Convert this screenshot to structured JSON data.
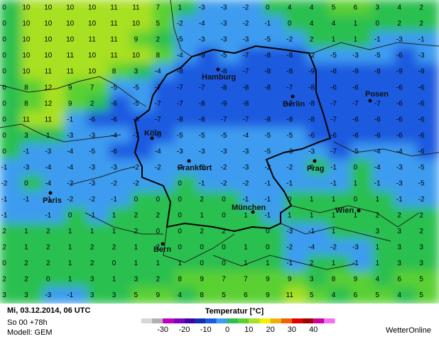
{
  "map": {
    "grid": [
      [
        0,
        10,
        10,
        10,
        10,
        11,
        11,
        7,
        1,
        -3,
        -3,
        -2,
        0,
        4,
        4,
        5,
        6,
        3,
        4,
        2
      ],
      [
        0,
        10,
        10,
        10,
        10,
        11,
        10,
        5,
        -2,
        -4,
        -3,
        -2,
        -1,
        0,
        4,
        4,
        1,
        0,
        2,
        2
      ],
      [
        0,
        10,
        10,
        10,
        11,
        11,
        9,
        2,
        -5,
        -3,
        -3,
        -3,
        -5,
        -2,
        2,
        1,
        1,
        -1,
        -3,
        -1
      ],
      [
        0,
        10,
        10,
        11,
        10,
        11,
        10,
        8,
        -4,
        -9,
        -5,
        -7,
        -8,
        -8,
        -2,
        -5,
        -3,
        -5,
        -6,
        -3
      ],
      [
        0,
        10,
        11,
        11,
        10,
        8,
        3,
        -4,
        -8,
        null,
        -8,
        -7,
        -8,
        -8,
        -9,
        -8,
        -9,
        -8,
        -9,
        -9
      ],
      [
        0,
        8,
        12,
        9,
        7,
        -5,
        -5,
        -7,
        -7,
        -7,
        -8,
        -8,
        -8,
        -7,
        -8,
        -6,
        -6,
        null,
        -6,
        -6
      ],
      [
        0,
        8,
        12,
        9,
        2,
        -6,
        -5,
        -7,
        -7,
        -8,
        -9,
        -8,
        null,
        -7,
        -8,
        -7,
        -7,
        -7,
        -6,
        -6
      ],
      [
        0,
        11,
        11,
        -1,
        -6,
        -6,
        -6,
        -7,
        -8,
        -8,
        -7,
        -7,
        -8,
        -8,
        -8,
        -7,
        -6,
        -6,
        -6,
        -6
      ],
      [
        0,
        3,
        1,
        -3,
        -3,
        -4,
        -7,
        -6,
        -5,
        -5,
        -5,
        -4,
        -5,
        -5,
        -6,
        -6,
        -6,
        -6,
        -6,
        -6
      ],
      [
        0,
        -1,
        -3,
        -4,
        -5,
        -6,
        null,
        -4,
        -3,
        -3,
        -3,
        -3,
        -5,
        -3,
        -3,
        -7,
        -5,
        -4,
        -4,
        -6
      ],
      [
        -1,
        -3,
        -4,
        -4,
        -3,
        -3,
        -2,
        -2,
        -3,
        -2,
        -2,
        -3,
        -2,
        -2,
        0,
        -1,
        0,
        -4,
        -3,
        -5
      ],
      [
        -2,
        0,
        -4,
        -2,
        -3,
        -2,
        -2,
        null,
        0,
        -1,
        -2,
        -2,
        -1,
        -1,
        null,
        -1,
        1,
        -1,
        -3,
        -5
      ],
      [
        -1,
        -1,
        -1,
        -2,
        -2,
        -1,
        0,
        0,
        0,
        2,
        0,
        -1,
        -1,
        0,
        1,
        1,
        0,
        1,
        -1,
        -2
      ],
      [
        -1,
        null,
        -1,
        0,
        -1,
        1,
        2,
        2,
        0,
        1,
        0,
        1,
        -1,
        1,
        1,
        1,
        1,
        2,
        2,
        2
      ],
      [
        2,
        1,
        2,
        1,
        1,
        1,
        2,
        0,
        0,
        2,
        2,
        null,
        0,
        -3,
        -1,
        1,
        null,
        3,
        3,
        2
      ],
      [
        2,
        1,
        2,
        1,
        2,
        2,
        1,
        2,
        0,
        0,
        0,
        1,
        0,
        -2,
        -4,
        -2,
        -3,
        1,
        3,
        3
      ],
      [
        0,
        2,
        2,
        1,
        2,
        0,
        1,
        1,
        1,
        0,
        0,
        1,
        1,
        -1,
        2,
        1,
        -1,
        1,
        3,
        3
      ],
      [
        2,
        2,
        0,
        1,
        3,
        1,
        3,
        2,
        8,
        9,
        7,
        7,
        9,
        9,
        3,
        8,
        9,
        4,
        6,
        5
      ],
      [
        3,
        3,
        -3,
        -1,
        3,
        3,
        5,
        9,
        4,
        8,
        5,
        6,
        9,
        11,
        5,
        4,
        6,
        5,
        4,
        5
      ]
    ],
    "cities": [
      "Hamburg",
      "Berlin",
      "Posen",
      "Köln",
      "Frankfurt",
      "Prag",
      "München",
      "Wien",
      "Paris",
      "Bern"
    ]
  },
  "footer": {
    "date": "Mi, 03.12.2014, 06 UTC",
    "run": "So 00 +78h",
    "model": "Modell: GEM",
    "brand": "WetterOnline"
  },
  "legend": {
    "title": "Temperatur [°C]",
    "ticks": [
      -30,
      -20,
      -10,
      0,
      10,
      20,
      30,
      40
    ],
    "stops": [
      -40,
      -35,
      -30,
      -25,
      -20,
      -15,
      -10,
      -5,
      0,
      5,
      10,
      15,
      20,
      25,
      30,
      35,
      40,
      45,
      50
    ],
    "colors": [
      "#d8d8d8",
      "#b0b0b0",
      "#c000c0",
      "#8000c0",
      "#4000a8",
      "#1030b0",
      "#1e5ae0",
      "#3c9cf0",
      "#2cc050",
      "#5ad030",
      "#a8e024",
      "#f0f000",
      "#f0b000",
      "#f06000",
      "#e00000",
      "#a00000",
      "#d000a0",
      "#f070f0"
    ]
  }
}
